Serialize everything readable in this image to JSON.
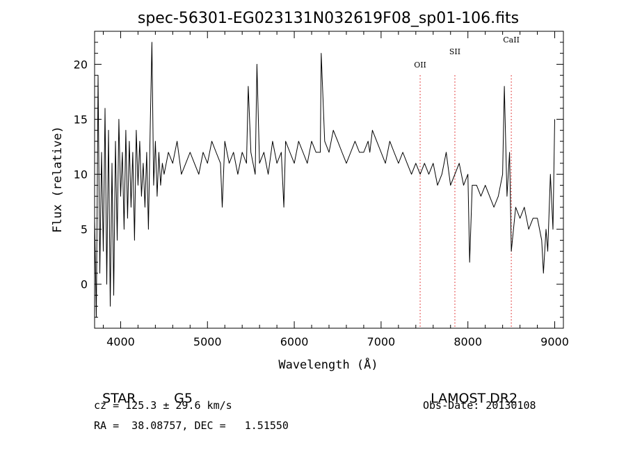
{
  "chart_data": {
    "type": "line",
    "title": "spec-56301-EG023131N032619F08_sp01-106.fits",
    "xlabel": "Wavelength (Å)",
    "ylabel": "Flux (relative)",
    "xlim": [
      3700,
      9100
    ],
    "ylim": [
      -4,
      23
    ],
    "xticks": [
      4000,
      5000,
      6000,
      7000,
      8000,
      9000
    ],
    "yticks": [
      0,
      5,
      10,
      15,
      20
    ],
    "grid": false,
    "series": [
      {
        "color": "#000000",
        "x": [
          3700,
          3720,
          3740,
          3760,
          3780,
          3800,
          3820,
          3840,
          3860,
          3880,
          3900,
          3920,
          3940,
          3960,
          3980,
          4000,
          4020,
          4040,
          4060,
          4080,
          4100,
          4120,
          4140,
          4160,
          4180,
          4200,
          4220,
          4240,
          4260,
          4280,
          4300,
          4320,
          4340,
          4360,
          4380,
          4400,
          4420,
          4440,
          4460,
          4480,
          4500,
          4550,
          4600,
          4650,
          4700,
          4750,
          4800,
          4850,
          4900,
          4950,
          5000,
          5050,
          5100,
          5150,
          5170,
          5200,
          5250,
          5300,
          5350,
          5400,
          5450,
          5470,
          5500,
          5550,
          5570,
          5600,
          5650,
          5700,
          5750,
          5800,
          5850,
          5880,
          5900,
          5950,
          6000,
          6050,
          6100,
          6150,
          6200,
          6250,
          6300,
          6310,
          6350,
          6400,
          6450,
          6500,
          6550,
          6600,
          6650,
          6700,
          6750,
          6800,
          6850,
          6870,
          6900,
          6950,
          7000,
          7050,
          7100,
          7150,
          7200,
          7250,
          7300,
          7350,
          7400,
          7450,
          7500,
          7550,
          7600,
          7650,
          7700,
          7750,
          7800,
          7850,
          7900,
          7950,
          8000,
          8020,
          8050,
          8100,
          8150,
          8200,
          8250,
          8300,
          8350,
          8400,
          8420,
          8450,
          8480,
          8500,
          8550,
          8600,
          8650,
          8700,
          8750,
          8800,
          8850,
          8870,
          8900,
          8920,
          8950,
          8980,
          9000
        ],
        "y": [
          6,
          -3,
          19,
          1,
          12,
          3,
          16,
          0,
          14,
          -2,
          11,
          -1,
          13,
          4,
          15,
          8,
          12,
          5,
          14,
          6,
          13,
          7,
          12,
          4,
          14,
          9,
          13,
          8,
          11,
          7,
          12,
          5,
          14,
          22,
          9,
          13,
          8,
          12,
          9,
          11,
          10,
          12,
          11,
          13,
          10,
          11,
          12,
          11,
          10,
          12,
          11,
          13,
          12,
          11,
          7,
          13,
          11,
          12,
          10,
          12,
          11,
          18,
          12,
          10,
          20,
          11,
          12,
          10,
          13,
          11,
          12,
          7,
          13,
          12,
          11,
          13,
          12,
          11,
          13,
          12,
          12,
          21,
          13,
          12,
          14,
          13,
          12,
          11,
          12,
          13,
          12,
          12,
          13,
          12,
          14,
          13,
          12,
          11,
          13,
          12,
          11,
          12,
          11,
          10,
          11,
          10,
          11,
          10,
          11,
          9,
          10,
          12,
          9,
          10,
          11,
          9,
          10,
          2,
          9,
          9,
          8,
          9,
          8,
          7,
          8,
          10,
          18,
          8,
          12,
          3,
          7,
          6,
          7,
          5,
          6,
          6,
          4,
          1,
          5,
          3,
          10,
          5,
          15
        ]
      }
    ],
    "annotations": [
      {
        "label": "OII",
        "x": 7450
      },
      {
        "label": "SII",
        "x": 7850
      },
      {
        "label": "CaII",
        "x": 8500
      }
    ],
    "annotation_color": "#e03030"
  },
  "info": {
    "class": "STAR",
    "subclass": "G5",
    "survey": "LAMOST DR2",
    "cz": "cz = 125.3 ± 29.6 km/s",
    "obs_date": "Obs-Date: 20130108",
    "coords": "RA =  38.08757, DEC =   1.51550"
  }
}
